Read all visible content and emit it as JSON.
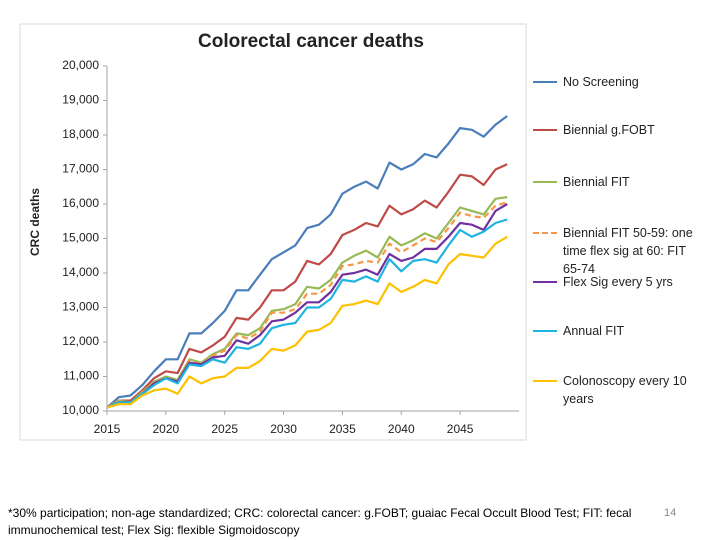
{
  "chart_data": {
    "type": "line",
    "title": "Colorectal cancer deaths",
    "y_label": "CRC deaths",
    "x": [
      2015,
      2016,
      2017,
      2018,
      2019,
      2020,
      2021,
      2022,
      2023,
      2024,
      2025,
      2026,
      2027,
      2028,
      2029,
      2030,
      2031,
      2032,
      2033,
      2034,
      2035,
      2036,
      2037,
      2038,
      2039,
      2040,
      2041,
      2042,
      2043,
      2044,
      2045,
      2046,
      2047,
      2048,
      2049
    ],
    "xlim": [
      2015,
      2050
    ],
    "xticks": [
      2015,
      2020,
      2025,
      2030,
      2035,
      2040,
      2045
    ],
    "ylim": [
      10000,
      20000
    ],
    "yticks": [
      {
        "value": 10000,
        "label": "10,000"
      },
      {
        "value": 11000,
        "label": "11,000"
      },
      {
        "value": 12000,
        "label": "12,000"
      },
      {
        "value": 13000,
        "label": "13,000"
      },
      {
        "value": 14000,
        "label": "14,000"
      },
      {
        "value": 15000,
        "label": "15,000"
      },
      {
        "value": 16000,
        "label": "16,000"
      },
      {
        "value": 17000,
        "label": "17,000"
      },
      {
        "value": 18000,
        "label": "18,000"
      },
      {
        "value": 19000,
        "label": "19,000"
      },
      {
        "value": 20000,
        "label": "20,000"
      }
    ],
    "grid": false,
    "legend": "right",
    "series": [
      {
        "name": "No Screening",
        "color": "#4a7ebb",
        "dashed": false,
        "values": [
          10100,
          10400,
          10450,
          10750,
          11150,
          11500,
          11500,
          12250,
          12250,
          12550,
          12900,
          13500,
          13500,
          13950,
          14400,
          14600,
          14800,
          15300,
          15400,
          15700,
          16300,
          16500,
          16650,
          16450,
          17200,
          17000,
          17150,
          17450,
          17350,
          17750,
          18200,
          18150,
          17950,
          18300,
          18550
        ]
      },
      {
        "name": "Biennial g.FOBT",
        "color": "#be4b48",
        "dashed": false,
        "values": [
          10100,
          10300,
          10300,
          10600,
          10950,
          11150,
          11100,
          11800,
          11700,
          11900,
          12150,
          12700,
          12650,
          13000,
          13500,
          13500,
          13750,
          14350,
          14250,
          14550,
          15100,
          15250,
          15450,
          15350,
          15950,
          15700,
          15850,
          16100,
          15900,
          16350,
          16850,
          16800,
          16550,
          17000,
          17150
        ]
      },
      {
        "name": "Biennial FIT",
        "color": "#98b954",
        "dashed": false,
        "values": [
          10100,
          10300,
          10250,
          10550,
          10850,
          11000,
          10900,
          11500,
          11400,
          11650,
          11800,
          12250,
          12200,
          12400,
          12900,
          12950,
          13100,
          13600,
          13550,
          13800,
          14300,
          14500,
          14650,
          14450,
          15050,
          14800,
          14950,
          15150,
          15000,
          15450,
          15900,
          15800,
          15700,
          16150,
          16200
        ]
      },
      {
        "name": "Biennial FIT 50-59: one time flex sig at 60: FIT 65-74",
        "color": "#f79646",
        "dashed": true,
        "values": [
          10100,
          10280,
          10230,
          10530,
          10820,
          10950,
          10850,
          11450,
          11350,
          11600,
          11750,
          12200,
          12100,
          12300,
          12850,
          12850,
          12950,
          13400,
          13400,
          13650,
          14200,
          14250,
          14350,
          14300,
          14850,
          14600,
          14800,
          15000,
          14900,
          15300,
          15750,
          15650,
          15600,
          15950,
          16050
        ]
      },
      {
        "name": "Flex Sig every 5 yrs",
        "color": "#7030a0",
        "dashed": false,
        "values": [
          10100,
          10250,
          10250,
          10500,
          10800,
          10950,
          10850,
          11400,
          11350,
          11550,
          11600,
          12050,
          11950,
          12200,
          12600,
          12650,
          12850,
          13150,
          13150,
          13450,
          13950,
          14000,
          14100,
          13950,
          14550,
          14350,
          14450,
          14700,
          14700,
          15050,
          15450,
          15400,
          15250,
          15800,
          16000
        ]
      },
      {
        "name": "Annual FIT",
        "color": "#1fb3e0",
        "dashed": false,
        "values": [
          10100,
          10250,
          10250,
          10500,
          10750,
          10950,
          10800,
          11350,
          11300,
          11500,
          11400,
          11850,
          11800,
          11950,
          12400,
          12500,
          12550,
          13000,
          13000,
          13250,
          13800,
          13750,
          13900,
          13750,
          14400,
          14050,
          14350,
          14400,
          14300,
          14800,
          15250,
          15050,
          15200,
          15450,
          15550
        ]
      },
      {
        "name": "Colonoscopy every 10 years",
        "color": "#ffc000",
        "dashed": false,
        "values": [
          10100,
          10200,
          10200,
          10450,
          10600,
          10650,
          10500,
          11000,
          10800,
          10950,
          11000,
          11250,
          11250,
          11450,
          11800,
          11750,
          11900,
          12300,
          12350,
          12550,
          13050,
          13100,
          13200,
          13100,
          13700,
          13450,
          13600,
          13800,
          13700,
          14250,
          14550,
          14500,
          14450,
          14850,
          15050
        ]
      }
    ]
  },
  "footnote": "*30% participation; non-age standardized; CRC: colorectal cancer: g.FOBT; guaiac Fecal Occult Blood Test; FIT: fecal immunochemical test; Flex Sig: flexible Sigmoidoscopy",
  "page_number": "14"
}
